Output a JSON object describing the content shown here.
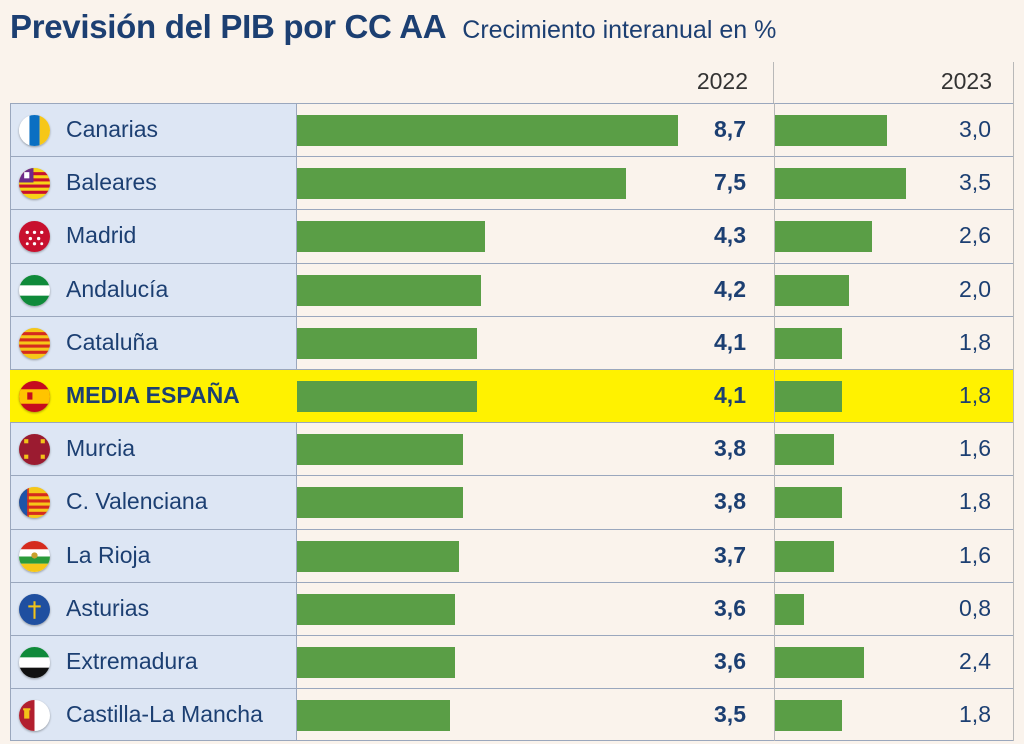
{
  "chart_data": {
    "type": "table",
    "title": "Previsión del PIB por CC AA",
    "subtitle": "Crecimiento interanual en %",
    "columns": [
      "2022",
      "2023"
    ],
    "categories": [
      "Canarias",
      "Baleares",
      "Madrid",
      "Andalucía",
      "Cataluña",
      "MEDIA ESPAÑA",
      "Murcia",
      "C. Valenciana",
      "La Rioja",
      "Asturias",
      "Extremadura",
      "Castilla-La Mancha"
    ],
    "series": [
      {
        "name": "2022",
        "values": [
          8.7,
          7.5,
          4.3,
          4.2,
          4.1,
          4.1,
          3.8,
          3.8,
          3.7,
          3.6,
          3.6,
          3.5
        ]
      },
      {
        "name": "2023",
        "values": [
          3.0,
          3.5,
          2.6,
          2.0,
          1.8,
          1.8,
          1.6,
          1.8,
          1.6,
          0.8,
          2.4,
          1.8
        ]
      }
    ],
    "rows": [
      {
        "name": "Canarias",
        "flag": "canarias-flag-icon",
        "v2022": 8.7,
        "v2023": 3.0,
        "t2022": "8,7",
        "t2023": "3,0"
      },
      {
        "name": "Baleares",
        "flag": "baleares-flag-icon",
        "v2022": 7.5,
        "v2023": 3.5,
        "t2022": "7,5",
        "t2023": "3,5"
      },
      {
        "name": "Madrid",
        "flag": "madrid-flag-icon",
        "v2022": 4.3,
        "v2023": 2.6,
        "t2022": "4,3",
        "t2023": "2,6"
      },
      {
        "name": "Andalucía",
        "flag": "andalucia-flag-icon",
        "v2022": 4.2,
        "v2023": 2.0,
        "t2022": "4,2",
        "t2023": "2,0"
      },
      {
        "name": "Cataluña",
        "flag": "cataluna-flag-icon",
        "v2022": 4.1,
        "v2023": 1.8,
        "t2022": "4,1",
        "t2023": "1,8"
      },
      {
        "name": "MEDIA ESPAÑA",
        "flag": "spain-flag-icon",
        "highlight": true,
        "v2022": 4.1,
        "v2023": 1.8,
        "t2022": "4,1",
        "t2023": "1,8"
      },
      {
        "name": "Murcia",
        "flag": "murcia-flag-icon",
        "v2022": 3.8,
        "v2023": 1.6,
        "t2022": "3,8",
        "t2023": "1,6"
      },
      {
        "name": "C. Valenciana",
        "flag": "valenciana-flag-icon",
        "v2022": 3.8,
        "v2023": 1.8,
        "t2022": "3,8",
        "t2023": "1,8"
      },
      {
        "name": "La Rioja",
        "flag": "rioja-flag-icon",
        "v2022": 3.7,
        "v2023": 1.6,
        "t2022": "3,7",
        "t2023": "1,6"
      },
      {
        "name": "Asturias",
        "flag": "asturias-flag-icon",
        "v2022": 3.6,
        "v2023": 0.8,
        "t2022": "3,6",
        "t2023": "0,8"
      },
      {
        "name": "Extremadura",
        "flag": "extremadura-flag-icon",
        "v2022": 3.6,
        "v2023": 2.4,
        "t2022": "3,6",
        "t2023": "2,4"
      },
      {
        "name": "Castilla-La Mancha",
        "flag": "castilla-la-mancha-flag-icon",
        "v2022": 3.5,
        "v2023": 1.8,
        "t2022": "3,5",
        "t2023": "1,8"
      }
    ],
    "colors": {
      "bar": "#5a9e46",
      "highlight": "#fff200",
      "text": "#1c3f72",
      "label_bg": "#dde6f4"
    }
  }
}
